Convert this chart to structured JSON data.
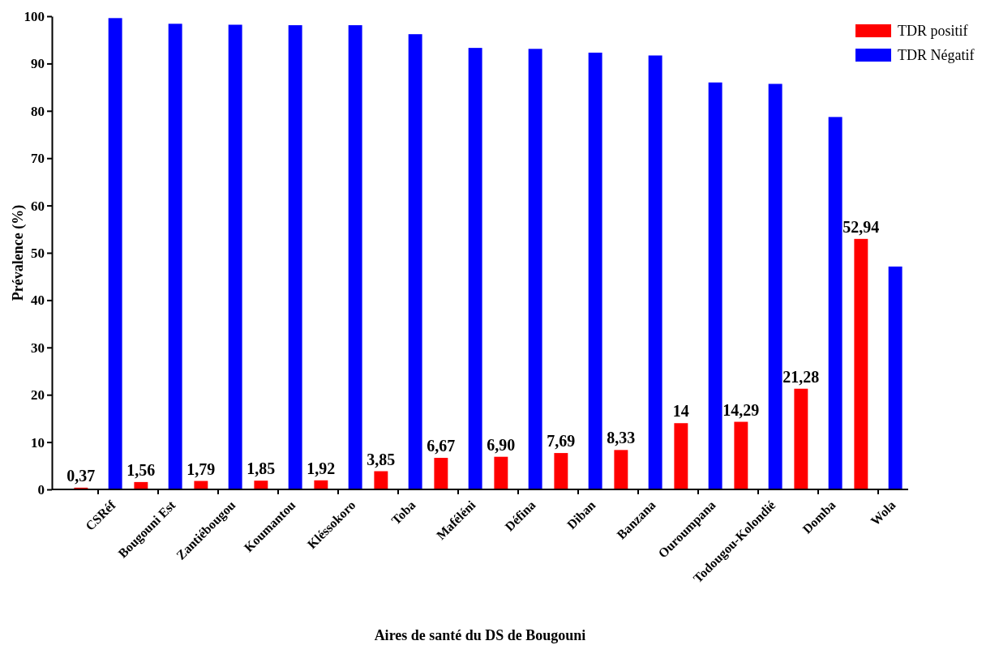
{
  "chart_data": {
    "type": "bar",
    "xlabel": "Aires de santé du DS de Bougouni",
    "ylabel": "Prévalence (%)",
    "categories": [
      "CSRéf",
      "Bougouni Est",
      "Zantiébougou",
      "Koumantou",
      "Kléssokoro",
      "Toba",
      "Maféléni",
      "Défina",
      "Diban",
      "Banzana",
      "Ouroumpana",
      "Todougou-Kolondié",
      "Domba",
      "Wola"
    ],
    "series": [
      {
        "name": "TDR positif",
        "color": "#ff0000",
        "values": [
          0.37,
          1.56,
          1.79,
          1.85,
          1.92,
          3.85,
          6.67,
          6.9,
          7.69,
          8.33,
          14,
          14.29,
          21.28,
          52.94
        ],
        "value_labels": [
          "0,37",
          "1,56",
          "1,79",
          "1,85",
          "1,92",
          "3,85",
          "6,67",
          "6,90",
          "7,69",
          "8,33",
          "14",
          "14,29",
          "21,28",
          "52,94"
        ]
      },
      {
        "name": "TDR Négatif",
        "color": "#0000ff",
        "values": [
          99.6,
          98.4,
          98.2,
          98.1,
          98.1,
          96.2,
          93.3,
          93.1,
          92.3,
          91.7,
          86,
          85.7,
          78.7,
          47.1
        ]
      }
    ],
    "ylim": [
      0,
      100
    ],
    "yticks": [
      0,
      10,
      20,
      30,
      40,
      50,
      60,
      70,
      80,
      90,
      100
    ],
    "grid": false,
    "legend": "top right"
  }
}
